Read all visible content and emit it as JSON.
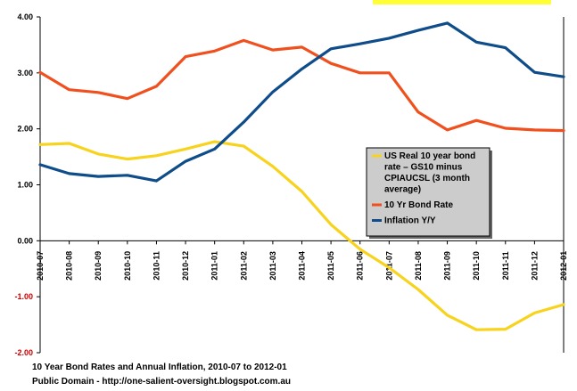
{
  "chart_data": {
    "type": "line",
    "title": "10 Year Bond Rates and Annual Inflation, 2010-07 to 2012-01",
    "source": "Public Domain - http://one-salient-oversight.blogspot.com.au",
    "x": [
      "2010-07",
      "2010-08",
      "2010-09",
      "2010-10",
      "2010-11",
      "2010-12",
      "2011-01",
      "2011-02",
      "2011-03",
      "2011-04",
      "2011-05",
      "2011-06",
      "2011-07",
      "2011-08",
      "2011-09",
      "2011-10",
      "2011-11",
      "2011-12",
      "2012-01"
    ],
    "yticks": [
      "4.00",
      "3.00",
      "2.00",
      "1.00",
      "0.00",
      "-1.00",
      "-2.00"
    ],
    "ytick_values": [
      4,
      3,
      2,
      1,
      0,
      -1,
      -2
    ],
    "ylim": [
      -2,
      4
    ],
    "grid": false,
    "legend_position": "center-right",
    "series": [
      {
        "name": "US Real 10 year bond rate - GS10 minus CPIAUCSL (3 month average)",
        "legend_lines": [
          "US Real 10 year bond",
          "rate – GS10 minus",
          "CPIAUCSL (3 month",
          "average)"
        ],
        "color": "#f7d31e",
        "values": [
          1.72,
          1.74,
          1.55,
          1.46,
          1.52,
          1.64,
          1.77,
          1.69,
          1.33,
          0.88,
          0.29,
          -0.15,
          -0.48,
          -0.87,
          -1.33,
          -1.59,
          -1.58,
          -1.29,
          -1.14
        ]
      },
      {
        "name": "10 Yr Bond Rate",
        "legend_lines": [
          "10 Yr Bond Rate"
        ],
        "color": "#f0501e",
        "values": [
          3.01,
          2.7,
          2.65,
          2.54,
          2.76,
          3.29,
          3.39,
          3.58,
          3.41,
          3.46,
          3.17,
          3.0,
          3.0,
          2.3,
          1.98,
          2.15,
          2.01,
          1.98,
          1.97
        ]
      },
      {
        "name": "Inflation Y/Y",
        "legend_lines": [
          "Inflation Y/Y"
        ],
        "color": "#0e4c8a",
        "values": [
          1.36,
          1.2,
          1.15,
          1.17,
          1.07,
          1.42,
          1.64,
          2.12,
          2.66,
          3.07,
          3.43,
          3.52,
          3.62,
          3.76,
          3.89,
          3.55,
          3.45,
          3.01,
          2.93
        ]
      }
    ],
    "colors": {
      "negative_tick": "#cc0000",
      "positive_tick": "#000000",
      "legend_bg": "#cccccc",
      "highlight": "#ffff33"
    }
  },
  "captions": {
    "line1": "10 Year Bond Rates and Annual Inflation, 2010-07 to 2012-01",
    "line2": "Public Domain - http://one-salient-oversight.blogspot.com.au"
  }
}
